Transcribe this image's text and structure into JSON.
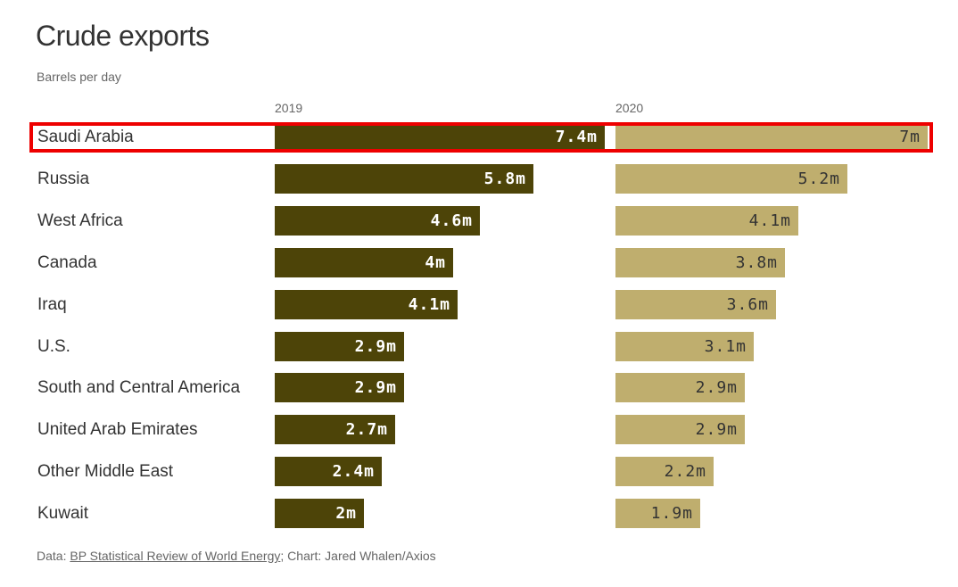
{
  "chart_data": {
    "type": "bar",
    "title": "Crude exports",
    "subtitle": "Barrels per day",
    "categories": [
      "Saudi Arabia",
      "Russia",
      "West Africa",
      "Canada",
      "Iraq",
      "U.S.",
      "South and Central America",
      "United Arab Emirates",
      "Other Middle East",
      "Kuwait"
    ],
    "series": [
      {
        "name": "2019",
        "values": [
          7.4,
          5.8,
          4.6,
          4.0,
          4.1,
          2.9,
          2.9,
          2.7,
          2.4,
          2.0
        ],
        "labels": [
          "7.4m",
          "5.8m",
          "4.6m",
          "4m",
          "4.1m",
          "2.9m",
          "2.9m",
          "2.7m",
          "2.4m",
          "2m"
        ],
        "color": "#4d4408"
      },
      {
        "name": "2020",
        "values": [
          7.0,
          5.2,
          4.1,
          3.8,
          3.6,
          3.1,
          2.9,
          2.9,
          2.2,
          1.9
        ],
        "labels": [
          "7m",
          "5.2m",
          "4.1m",
          "3.8m",
          "3.6m",
          "3.1m",
          "2.9m",
          "2.9m",
          "2.2m",
          "1.9m"
        ],
        "color": "#bfae6e"
      }
    ],
    "unit": "million barrels per day",
    "highlighted_category": "Saudi Arabia",
    "highlight_color": "#e00000"
  },
  "footer": {
    "prefix": "Data: ",
    "source_link": "BP Statistical Review of World Energy",
    "suffix": "; Chart: Jared Whalen/Axios"
  }
}
